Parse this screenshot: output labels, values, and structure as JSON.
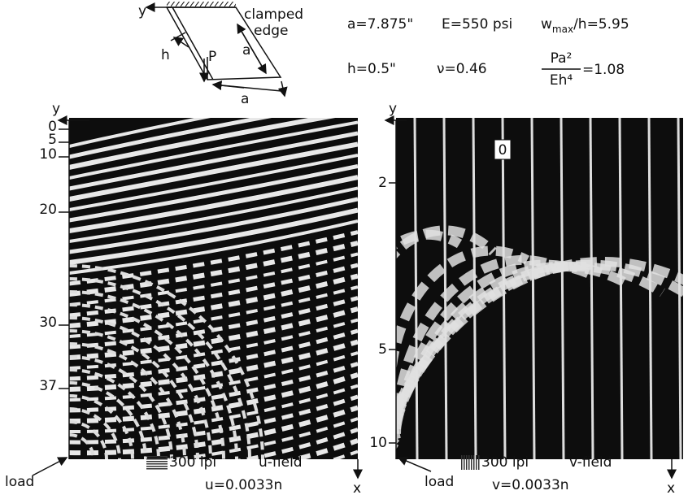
{
  "diagram": {
    "y": "y",
    "clamped": "clamped",
    "edge": "edge",
    "h": "h",
    "P": "P",
    "a_side": "a",
    "a_bottom": "a"
  },
  "parameters": {
    "a": "a=7.875\"",
    "E": "E=550 psi",
    "w_base": "w",
    "w_sub": "max",
    "w_rest": "/h=5.95",
    "h": "h=0.5\"",
    "nu": "ν=0.46",
    "numerator": "Pa²",
    "denominator": "Eh⁴",
    "ratio": "=1.08"
  },
  "left_panel": {
    "y_label": "y",
    "fringe_orders": [
      "0",
      "5",
      "10",
      "20",
      "30",
      "37"
    ],
    "load": "load",
    "pitch": "300 lpi",
    "field": "u-field",
    "equation": "u=0.0033n",
    "x_label": "x"
  },
  "right_panel": {
    "y_label": "y",
    "zero_label": "0",
    "fringe_orders": [
      "2",
      "5",
      "10"
    ],
    "load": "load",
    "pitch": "300 lpi",
    "field": "v-field",
    "equation": "v=0.0033n",
    "x_label": "x"
  }
}
